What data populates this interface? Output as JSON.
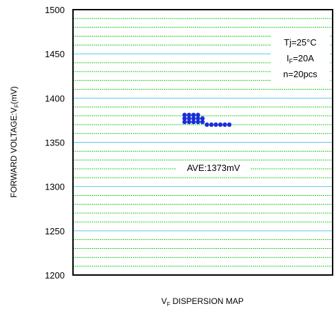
{
  "chart_data": {
    "type": "scatter",
    "ylabel_main": "FORWARD VOLTAGE:V",
    "ylabel_sub": "F",
    "ylabel_tail": "(mV)",
    "xlabel_main": "V",
    "xlabel_sub": "F",
    "xlabel_tail": " DISPERSION MAP",
    "ylim": [
      1200,
      1500
    ],
    "yticks": [
      1200,
      1250,
      1300,
      1350,
      1400,
      1450,
      1500
    ],
    "grid": true,
    "conditions": {
      "tj": "Tj=25°C",
      "if_main": "I",
      "if_sub": "F",
      "if_tail": "=20A",
      "n": "n=20pcs"
    },
    "average_label": "AVE:1373mV",
    "marker_color": "#1a2fd6",
    "major_grid_color": "#5bc8e8",
    "minor_grid_color": "#22cc22",
    "points": [
      {
        "x": 1,
        "y": 1381
      },
      {
        "x": 2,
        "y": 1381
      },
      {
        "x": 3,
        "y": 1381
      },
      {
        "x": 4,
        "y": 1381
      },
      {
        "x": 1,
        "y": 1377
      },
      {
        "x": 2,
        "y": 1377
      },
      {
        "x": 3,
        "y": 1377
      },
      {
        "x": 4,
        "y": 1377
      },
      {
        "x": 5,
        "y": 1377
      },
      {
        "x": 1,
        "y": 1373
      },
      {
        "x": 2,
        "y": 1373
      },
      {
        "x": 3,
        "y": 1373
      },
      {
        "x": 4,
        "y": 1373
      },
      {
        "x": 5,
        "y": 1373
      },
      {
        "x": 6,
        "y": 1370
      },
      {
        "x": 7,
        "y": 1370
      },
      {
        "x": 8,
        "y": 1370
      },
      {
        "x": 9,
        "y": 1370
      },
      {
        "x": 10,
        "y": 1370
      },
      {
        "x": 11,
        "y": 1370
      }
    ]
  }
}
